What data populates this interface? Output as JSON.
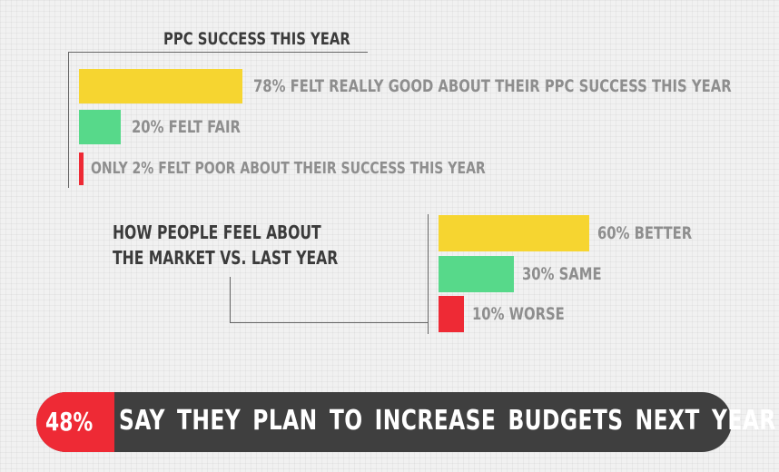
{
  "chart_data": [
    {
      "type": "bar",
      "title": "PPC SUCCESS THIS YEAR",
      "categories": [
        "Really good",
        "Fair",
        "Poor"
      ],
      "values": [
        78,
        20,
        2
      ],
      "unit": "%",
      "colors": [
        "#f6d530",
        "#57d98a",
        "#ee2a35"
      ],
      "labels": [
        "78% FELT REALLY GOOD ABOUT THEIR PPC SUCCESS THIS YEAR",
        "20% FELT FAIR",
        "ONLY 2% FELT POOR ABOUT THEIR SUCCESS THIS YEAR"
      ]
    },
    {
      "type": "bar",
      "title_lines": [
        "HOW PEOPLE FEEL ABOUT",
        "THE MARKET VS. LAST YEAR"
      ],
      "categories": [
        "Better",
        "Same",
        "Worse"
      ],
      "values": [
        60,
        30,
        10
      ],
      "unit": "%",
      "colors": [
        "#f6d530",
        "#57d98a",
        "#ee2a35"
      ],
      "labels": [
        "60% BETTER",
        "30% SAME",
        "10% WORSE"
      ]
    }
  ],
  "banner": {
    "percent": "48%",
    "text": "SAY THEY PLAN TO INCREASE BUDGETS NEXT YEAR",
    "badge_color": "#ee2a35",
    "background_color": "#3f3f3f"
  }
}
